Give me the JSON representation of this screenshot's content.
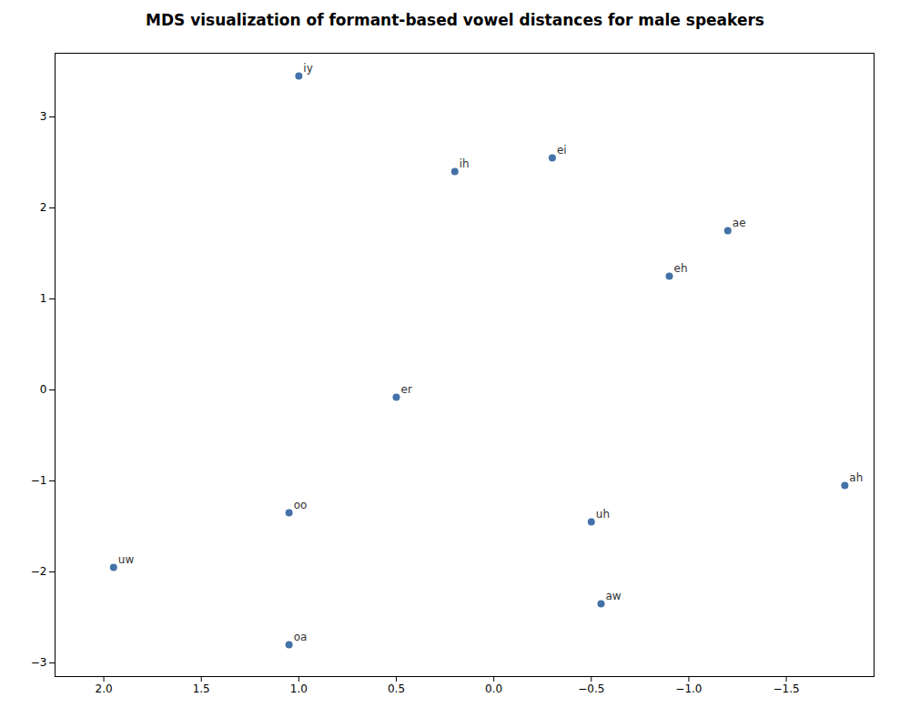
{
  "chart_data": {
    "type": "scatter",
    "title": "MDS visualization of formant-based vowel distances for male speakers",
    "labels": [
      "iy",
      "ih",
      "ei",
      "ae",
      "eh",
      "er",
      "oo",
      "uw",
      "oa",
      "uh",
      "aw",
      "ah"
    ],
    "x": [
      1.0,
      0.2,
      -0.3,
      -1.2,
      -0.9,
      0.5,
      1.05,
      1.95,
      1.05,
      -0.5,
      -0.55,
      -1.8
    ],
    "values": [
      3.45,
      2.4,
      2.55,
      1.75,
      1.25,
      -0.08,
      -1.35,
      -1.95,
      -2.8,
      -1.45,
      -2.35,
      -1.05
    ],
    "color": "#4472a8",
    "xlim": [
      2.25,
      -1.95
    ],
    "ylim": [
      -3.15,
      3.7
    ],
    "xticks": [
      {
        "value": 2.0,
        "label": "2.0"
      },
      1.5,
      {
        "value": 1.0,
        "label": "1.0"
      },
      0.5,
      {
        "value": 0.0,
        "label": "0.0"
      },
      {
        "value": -0.5,
        "label": "−0.5"
      },
      {
        "value": -1.0,
        "label": "−1.0"
      },
      {
        "value": -1.5,
        "label": "−1.5"
      }
    ],
    "yticks": [
      {
        "value": -3,
        "label": "−3"
      },
      {
        "value": -2,
        "label": "−2"
      },
      {
        "value": -1,
        "label": "−1"
      },
      0,
      1,
      2,
      3
    ],
    "grid": false
  }
}
